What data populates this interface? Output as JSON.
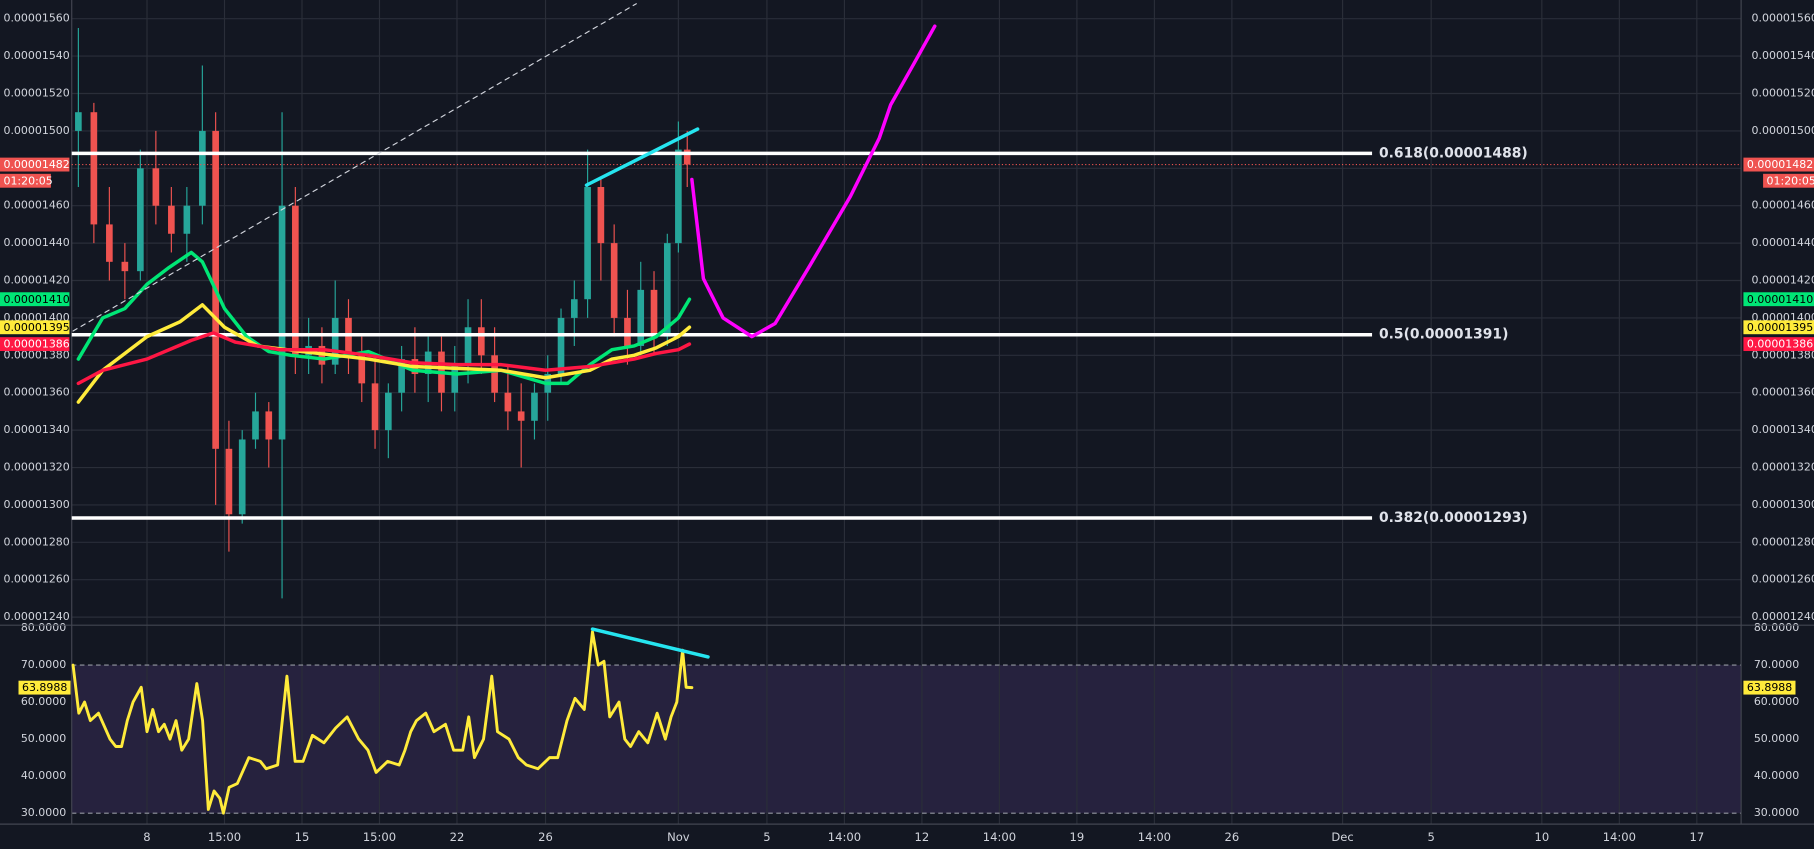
{
  "chart_data": [
    {
      "type": "candlestick",
      "xlim": [
        4.6,
        80
      ],
      "ylim": [
        1.236e-05,
        1.57e-05
      ],
      "yticks": [
        {
          "value": 1.24e-05,
          "label": "0.00001240"
        },
        {
          "value": 1.26e-05,
          "label": "0.00001260"
        },
        {
          "value": 1.28e-05,
          "label": "0.00001280"
        },
        {
          "value": 1.3e-05,
          "label": "0.00001300"
        },
        {
          "value": 1.32e-05,
          "label": "0.00001320"
        },
        {
          "value": 1.34e-05,
          "label": "0.00001340"
        },
        {
          "value": 1.36e-05,
          "label": "0.00001360"
        },
        {
          "value": 1.38e-05,
          "label": "0.00001380"
        },
        {
          "value": 1.4e-05,
          "label": "0.00001400"
        },
        {
          "value": 1.42e-05,
          "label": "0.00001420"
        },
        {
          "value": 1.44e-05,
          "label": "0.00001440"
        },
        {
          "value": 1.46e-05,
          "label": "0.00001460"
        },
        {
          "value": 1.48e-05,
          "label": "0.00001480"
        },
        {
          "value": 1.5e-05,
          "label": "0.00001500"
        },
        {
          "value": 1.52e-05,
          "label": "0.00001520"
        },
        {
          "value": 1.54e-05,
          "label": "0.00001540"
        },
        {
          "value": 1.56e-05,
          "label": "0.00001560"
        }
      ],
      "grid": true,
      "up_color": "#26a69a",
      "down_color": "#ef5350",
      "candles": {
        "x": [
          4.9,
          5.6,
          6.3,
          7.0,
          7.7,
          8.4,
          9.1,
          9.8,
          10.5,
          11.1,
          11.7,
          12.3,
          12.9,
          13.5,
          14.1,
          14.7,
          15.3,
          15.9,
          16.5,
          17.1,
          17.7,
          18.3,
          18.9,
          19.5,
          20.1,
          20.7,
          21.3,
          21.9,
          22.5,
          23.1,
          23.7,
          24.3,
          24.9,
          25.5,
          26.1,
          26.7,
          27.3,
          27.9,
          28.5,
          29.1,
          29.7,
          30.3,
          30.9,
          31.5,
          32.0,
          32.4
        ],
        "open": [
          1.5e-05,
          1.51e-05,
          1.45e-05,
          1.43e-05,
          1.425e-05,
          1.48e-05,
          1.46e-05,
          1.445e-05,
          1.46e-05,
          1.5e-05,
          1.33e-05,
          1.295e-05,
          1.335e-05,
          1.35e-05,
          1.335e-05,
          1.46e-05,
          1.38e-05,
          1.385e-05,
          1.375e-05,
          1.4e-05,
          1.38e-05,
          1.365e-05,
          1.34e-05,
          1.36e-05,
          1.378e-05,
          1.37e-05,
          1.382e-05,
          1.36e-05,
          1.375e-05,
          1.395e-05,
          1.38e-05,
          1.36e-05,
          1.35e-05,
          1.345e-05,
          1.36e-05,
          1.37e-05,
          1.4e-05,
          1.41e-05,
          1.47e-05,
          1.44e-05,
          1.4e-05,
          1.385e-05,
          1.415e-05,
          1.39e-05,
          1.44e-05,
          1.49e-05
        ],
        "high": [
          1.555e-05,
          1.515e-05,
          1.47e-05,
          1.44e-05,
          1.49e-05,
          1.5e-05,
          1.47e-05,
          1.47e-05,
          1.535e-05,
          1.51e-05,
          1.345e-05,
          1.34e-05,
          1.36e-05,
          1.355e-05,
          1.51e-05,
          1.47e-05,
          1.4e-05,
          1.395e-05,
          1.42e-05,
          1.41e-05,
          1.39e-05,
          1.38e-05,
          1.365e-05,
          1.385e-05,
          1.395e-05,
          1.39e-05,
          1.39e-05,
          1.385e-05,
          1.41e-05,
          1.41e-05,
          1.395e-05,
          1.375e-05,
          1.365e-05,
          1.365e-05,
          1.38e-05,
          1.405e-05,
          1.42e-05,
          1.49e-05,
          1.475e-05,
          1.45e-05,
          1.415e-05,
          1.43e-05,
          1.425e-05,
          1.445e-05,
          1.505e-05,
          1.5e-05
        ],
        "low": [
          1.47e-05,
          1.44e-05,
          1.42e-05,
          1.41e-05,
          1.42e-05,
          1.45e-05,
          1.435e-05,
          1.43e-05,
          1.45e-05,
          1.3e-05,
          1.275e-05,
          1.29e-05,
          1.33e-05,
          1.32e-05,
          1.25e-05,
          1.37e-05,
          1.37e-05,
          1.365e-05,
          1.37e-05,
          1.37e-05,
          1.355e-05,
          1.33e-05,
          1.325e-05,
          1.35e-05,
          1.36e-05,
          1.355e-05,
          1.35e-05,
          1.35e-05,
          1.365e-05,
          1.37e-05,
          1.355e-05,
          1.34e-05,
          1.32e-05,
          1.335e-05,
          1.345e-05,
          1.365e-05,
          1.385e-05,
          1.4e-05,
          1.42e-05,
          1.39e-05,
          1.375e-05,
          1.38e-05,
          1.38e-05,
          1.385e-05,
          1.435e-05,
          1.47e-05
        ],
        "close": [
          1.51e-05,
          1.45e-05,
          1.43e-05,
          1.425e-05,
          1.48e-05,
          1.46e-05,
          1.445e-05,
          1.46e-05,
          1.5e-05,
          1.33e-05,
          1.295e-05,
          1.335e-05,
          1.35e-05,
          1.335e-05,
          1.46e-05,
          1.38e-05,
          1.385e-05,
          1.375e-05,
          1.4e-05,
          1.38e-05,
          1.365e-05,
          1.34e-05,
          1.36e-05,
          1.378e-05,
          1.37e-05,
          1.382e-05,
          1.36e-05,
          1.375e-05,
          1.395e-05,
          1.38e-05,
          1.36e-05,
          1.35e-05,
          1.345e-05,
          1.36e-05,
          1.37e-05,
          1.4e-05,
          1.41e-05,
          1.47e-05,
          1.44e-05,
          1.4e-05,
          1.385e-05,
          1.415e-05,
          1.39e-05,
          1.44e-05,
          1.49e-05,
          1.482e-05
        ]
      },
      "series": [
        {
          "color": "#00e676",
          "last_label": "0.00001410",
          "x": [
            4.9,
            6,
            7,
            8,
            9,
            10,
            10.5,
            11.5,
            12.5,
            13.5,
            14.5,
            16,
            18,
            20,
            22,
            24,
            26,
            27,
            28,
            29,
            30,
            31,
            32,
            32.5
          ],
          "values": [
            1.378e-05,
            1.4e-05,
            1.405e-05,
            1.418e-05,
            1.427e-05,
            1.435e-05,
            1.43e-05,
            1.405e-05,
            1.39e-05,
            1.382e-05,
            1.38e-05,
            1.378e-05,
            1.382e-05,
            1.372e-05,
            1.37e-05,
            1.372e-05,
            1.365e-05,
            1.365e-05,
            1.375e-05,
            1.383e-05,
            1.385e-05,
            1.39e-05,
            1.4e-05,
            1.41e-05
          ]
        },
        {
          "color": "#ffeb3b",
          "last_label": "0.00001395",
          "x": [
            4.9,
            6,
            8,
            9.5,
            10.5,
            11.5,
            13,
            15,
            18,
            20,
            22,
            24,
            26,
            28,
            29,
            30,
            31,
            32,
            32.5
          ],
          "values": [
            1.355e-05,
            1.372e-05,
            1.39e-05,
            1.398e-05,
            1.407e-05,
            1.395e-05,
            1.385e-05,
            1.382e-05,
            1.378e-05,
            1.374e-05,
            1.373e-05,
            1.372e-05,
            1.368e-05,
            1.372e-05,
            1.378e-05,
            1.38e-05,
            1.384e-05,
            1.39e-05,
            1.395e-05
          ]
        },
        {
          "color": "#ff1744",
          "last_label": "0.00001386",
          "x": [
            4.9,
            6,
            8,
            10,
            11,
            12,
            14,
            16,
            18,
            20,
            22,
            24,
            26,
            28,
            30,
            31,
            32,
            32.5
          ],
          "values": [
            1.365e-05,
            1.372e-05,
            1.378e-05,
            1.388e-05,
            1.392e-05,
            1.387e-05,
            1.383e-05,
            1.383e-05,
            1.38e-05,
            1.376e-05,
            1.375e-05,
            1.375e-05,
            1.372e-05,
            1.374e-05,
            1.378e-05,
            1.381e-05,
            1.383e-05,
            1.386e-05
          ]
        }
      ],
      "levels": [
        {
          "value": 1.488e-05,
          "label": "0.618(0.00001488)"
        },
        {
          "value": 1.391e-05,
          "label": "0.5(0.00001391)"
        },
        {
          "value": 1.293e-05,
          "label": "0.382(0.00001293)"
        }
      ],
      "price_label": {
        "value": 1.482e-05,
        "label": "0.00001482"
      },
      "countdown": "01:20:05",
      "price_color": "#ef5350",
      "drawings": [
        {
          "color": "#d1d4dc",
          "dashed": true,
          "x": [
            4.66,
            30.1
          ],
          "values": [
            1.393e-05,
            1.568e-05
          ]
        },
        {
          "color": "#26e5f0",
          "dashed": false,
          "x": [
            27.85,
            32.87
          ],
          "values": [
            1.471e-05,
            1.501e-05
          ]
        },
        {
          "color": "#ff00ff",
          "dashed": false,
          "x": [
            32.61,
            33.13,
            34.02,
            35.32,
            36.37,
            37.94,
            39.77,
            41.07,
            41.59,
            42.64,
            43.58
          ],
          "values": [
            1.474e-05,
            1.421e-05,
            1.4e-05,
            1.39e-05,
            1.397e-05,
            1.428e-05,
            1.465e-05,
            1.496e-05,
            1.514e-05,
            1.536e-05,
            1.556e-05
          ]
        }
      ]
    },
    {
      "type": "line",
      "xlim": [
        4.6,
        80
      ],
      "ylim": [
        27.2,
        80.6
      ],
      "yticks": [
        {
          "value": 30,
          "label": "30.0000"
        },
        {
          "value": 40,
          "label": "40.0000"
        },
        {
          "value": 50,
          "label": "50.0000"
        },
        {
          "value": 60,
          "label": "60.0000"
        },
        {
          "value": 70,
          "label": "70.0000"
        },
        {
          "value": 80,
          "label": "80.0000"
        }
      ],
      "xticks": [
        8,
        {
          "value": 11.5,
          "label": "15:00"
        },
        15,
        {
          "value": 18.5,
          "label": "15:00"
        },
        22,
        26,
        {
          "value": 32,
          "label": "Nov"
        },
        {
          "value": 36,
          "label": "5"
        },
        {
          "value": 39.5,
          "label": "14:00"
        },
        {
          "value": 43,
          "label": "12"
        },
        {
          "value": 46.5,
          "label": "14:00"
        },
        {
          "value": 50,
          "label": "19"
        },
        {
          "value": 53.5,
          "label": "14:00"
        },
        {
          "value": 57,
          "label": "26"
        },
        {
          "value": 62,
          "label": "Dec"
        },
        {
          "value": 66,
          "label": "5"
        },
        {
          "value": 71,
          "label": "10"
        },
        {
          "value": 74.5,
          "label": "14:00"
        },
        {
          "value": 78,
          "label": "17"
        }
      ],
      "band": [
        30,
        70
      ],
      "band_color": "#7e57c2",
      "series": [
        {
          "color": "#ffeb3b",
          "last_label": "63.8988",
          "x": [
            4.66,
            4.92,
            5.18,
            5.44,
            5.81,
            6.33,
            6.59,
            6.85,
            7.11,
            7.37,
            7.74,
            8.0,
            8.26,
            8.52,
            8.78,
            9.04,
            9.31,
            9.57,
            9.88,
            10.25,
            10.51,
            10.77,
            11.03,
            11.29,
            11.45,
            11.71,
            12.08,
            12.6,
            13.12,
            13.38,
            13.9,
            14.32,
            14.69,
            15.05,
            15.47,
            15.99,
            16.52,
            17.04,
            17.56,
            17.98,
            18.35,
            18.87,
            19.39,
            19.65,
            19.91,
            20.17,
            20.59,
            20.96,
            21.48,
            21.85,
            22.26,
            22.53,
            22.79,
            23.2,
            23.57,
            23.83,
            24.35,
            24.77,
            25.14,
            25.66,
            26.18,
            26.55,
            26.97,
            27.33,
            27.75,
            28.12,
            28.38,
            28.64,
            28.9,
            29.32,
            29.58,
            29.84,
            30.21,
            30.62,
            31.04,
            31.41,
            31.67,
            31.93,
            32.19,
            32.35,
            32.61
          ],
          "values": [
            70,
            57,
            60,
            55,
            57,
            50,
            48,
            48,
            55,
            60,
            64,
            52,
            58,
            52,
            54,
            50,
            55,
            47,
            50,
            65,
            55,
            31,
            36,
            34,
            30,
            37,
            38,
            45,
            44,
            42,
            43,
            67,
            44,
            44,
            51,
            49,
            53,
            56,
            50,
            47,
            41,
            44,
            43,
            47,
            52,
            55,
            57,
            52,
            54,
            47,
            47,
            56,
            45,
            50,
            67,
            52,
            50,
            45,
            43,
            42,
            45,
            45,
            55,
            61,
            58,
            79,
            70,
            71,
            56,
            60,
            50,
            48,
            52,
            49,
            57,
            50,
            56,
            60,
            74,
            64,
            63.8988
          ]
        }
      ],
      "drawings": [
        {
          "color": "#26e5f0",
          "dashed": false,
          "x": [
            28.12,
            33.34
          ],
          "values": [
            79.7,
            72.2
          ]
        }
      ]
    }
  ]
}
